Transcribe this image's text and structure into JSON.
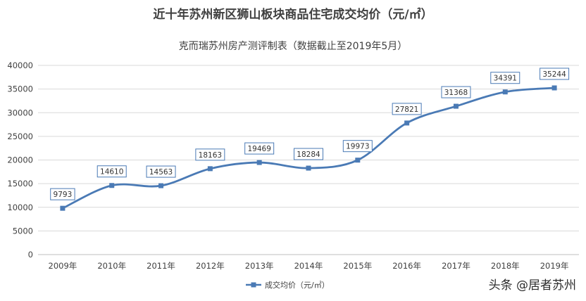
{
  "chart_data": {
    "type": "line",
    "title": "近十年苏州新区狮山板块商品住宅成交均价（元/㎡）",
    "subtitle": "克而瑞苏州房产测评制表（数据截止至2019年5月）",
    "categories": [
      "2009年",
      "2010年",
      "2011年",
      "2012年",
      "2013年",
      "2014年",
      "2015年",
      "2016年",
      "2017年",
      "2018年",
      "2019年"
    ],
    "series": [
      {
        "name": "成交均价（元/㎡）",
        "values": [
          9793,
          14610,
          14563,
          18163,
          19469,
          18284,
          19973,
          27821,
          31368,
          34391,
          35244
        ]
      }
    ],
    "ylim": [
      0,
      40000
    ],
    "yticks": [
      0,
      5000,
      10000,
      15000,
      20000,
      25000,
      30000,
      35000,
      40000
    ],
    "grid": true,
    "legend": "bottom",
    "color": "#4a7ab5",
    "smooth": true,
    "data_labels": true
  },
  "watermark": {
    "text": "头条 @居者苏州"
  }
}
